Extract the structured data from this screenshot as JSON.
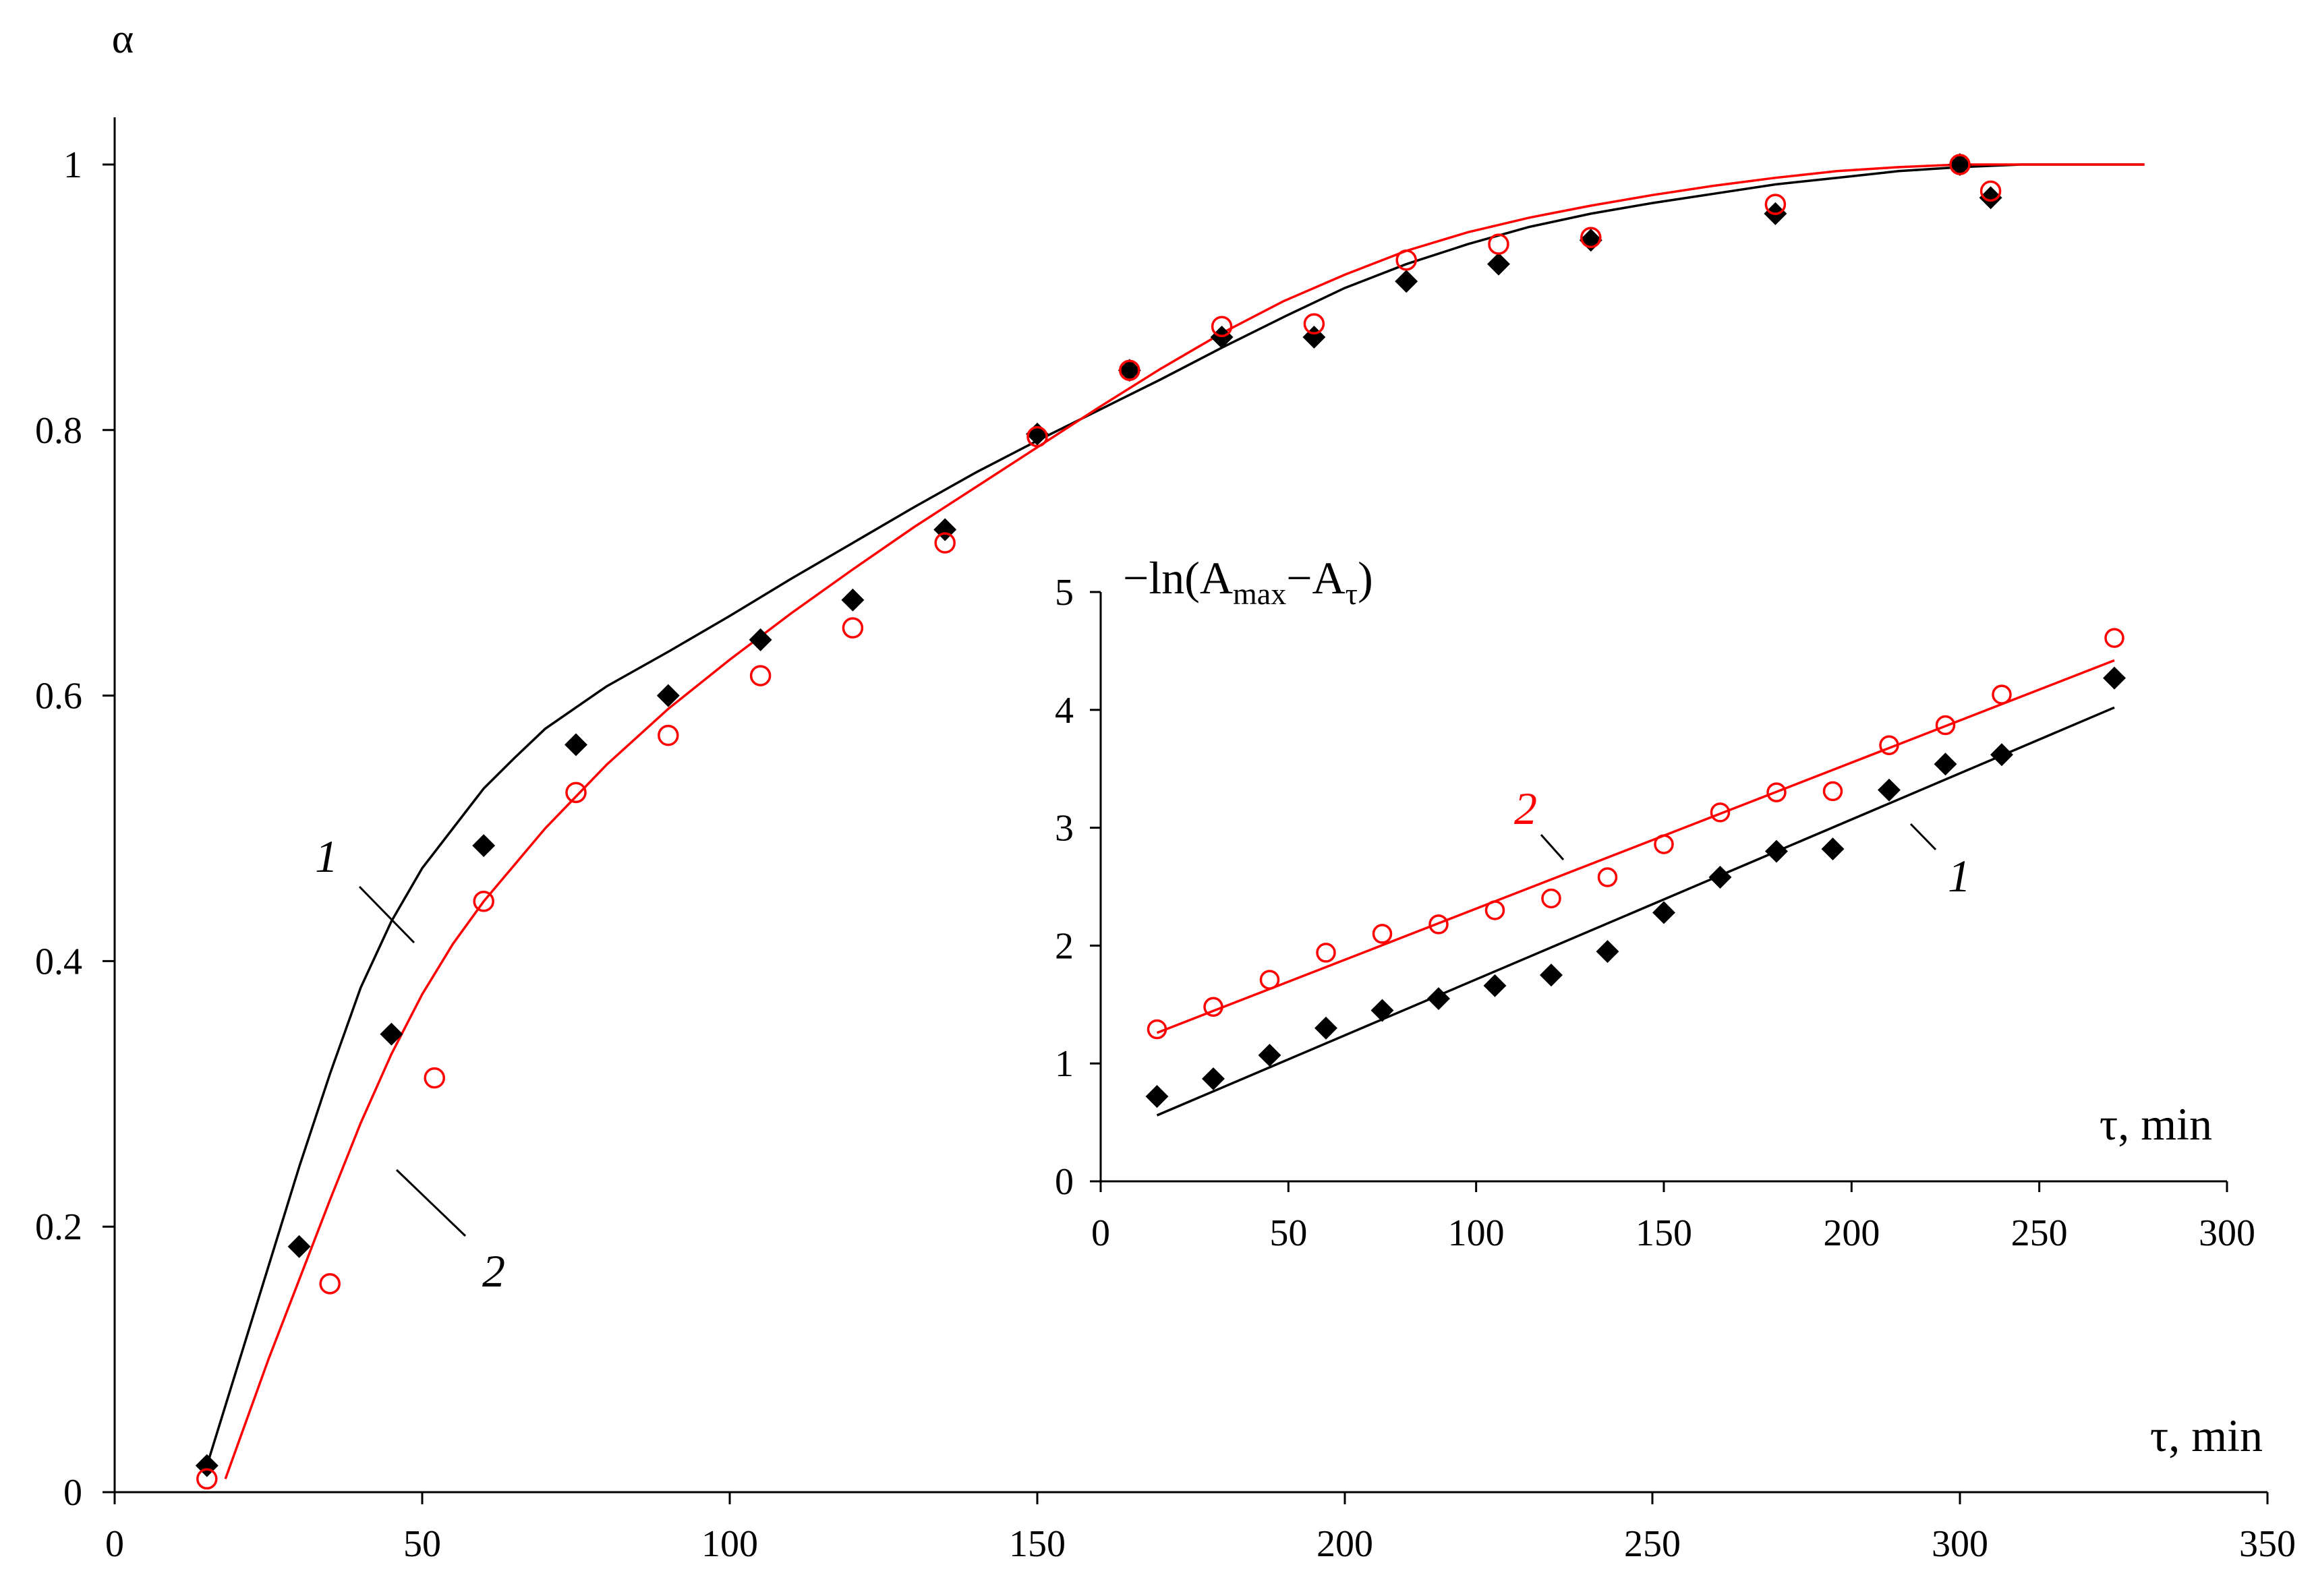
{
  "chart_data": [
    {
      "type": "scatter",
      "role": "main",
      "ylabel": "α",
      "xlabel": "τ, min",
      "xlim": [
        0,
        350
      ],
      "ylim": [
        0,
        1
      ],
      "xticks": [
        0,
        50,
        100,
        150,
        200,
        250,
        300,
        350
      ],
      "yticks": [
        0,
        0.2,
        0.4,
        0.6,
        0.8,
        1
      ],
      "ytick_labels": [
        "0",
        "0.2",
        "0.4",
        "0.6",
        "0.8",
        "1"
      ],
      "grid": false,
      "series": [
        {
          "name": "1",
          "color": "#000000",
          "marker": "filled-diamond",
          "points": [
            [
              15,
              0.02
            ],
            [
              30,
              0.185
            ],
            [
              45,
              0.345
            ],
            [
              60,
              0.487
            ],
            [
              75,
              0.563
            ],
            [
              90,
              0.6
            ],
            [
              105,
              0.642
            ],
            [
              120,
              0.672
            ],
            [
              135,
              0.725
            ],
            [
              150,
              0.797
            ],
            [
              165,
              0.845
            ],
            [
              180,
              0.87
            ],
            [
              195,
              0.87
            ],
            [
              210,
              0.912
            ],
            [
              225,
              0.925
            ],
            [
              240,
              0.943
            ],
            [
              270,
              0.963
            ],
            [
              300,
              1.0
            ],
            [
              305,
              0.975
            ]
          ],
          "fit_curve": [
            [
              15,
              0.02
            ],
            [
              20,
              0.095
            ],
            [
              25,
              0.17
            ],
            [
              30,
              0.245
            ],
            [
              35,
              0.315
            ],
            [
              40,
              0.38
            ],
            [
              45,
              0.43
            ],
            [
              50,
              0.47
            ],
            [
              55,
              0.5
            ],
            [
              60,
              0.53
            ],
            [
              65,
              0.553
            ],
            [
              70,
              0.575
            ],
            [
              80,
              0.607
            ],
            [
              90,
              0.633
            ],
            [
              100,
              0.66
            ],
            [
              110,
              0.688
            ],
            [
              120,
              0.715
            ],
            [
              130,
              0.742
            ],
            [
              140,
              0.768
            ],
            [
              150,
              0.792
            ],
            [
              160,
              0.815
            ],
            [
              170,
              0.838
            ],
            [
              180,
              0.862
            ],
            [
              190,
              0.885
            ],
            [
              200,
              0.907
            ],
            [
              210,
              0.925
            ],
            [
              220,
              0.94
            ],
            [
              230,
              0.953
            ],
            [
              240,
              0.963
            ],
            [
              250,
              0.971
            ],
            [
              260,
              0.978
            ],
            [
              270,
              0.985
            ],
            [
              280,
              0.99
            ],
            [
              290,
              0.995
            ],
            [
              300,
              0.998
            ],
            [
              310,
              1.0
            ],
            [
              330,
              1.0
            ]
          ]
        },
        {
          "name": "2",
          "color": "#ff0000",
          "marker": "open-circle",
          "points": [
            [
              15,
              0.01
            ],
            [
              35,
              0.157
            ],
            [
              52,
              0.312
            ],
            [
              60,
              0.445
            ],
            [
              75,
              0.527
            ],
            [
              90,
              0.57
            ],
            [
              105,
              0.615
            ],
            [
              120,
              0.651
            ],
            [
              135,
              0.715
            ],
            [
              150,
              0.795
            ],
            [
              165,
              0.845
            ],
            [
              180,
              0.878
            ],
            [
              195,
              0.88
            ],
            [
              210,
              0.928
            ],
            [
              225,
              0.94
            ],
            [
              240,
              0.945
            ],
            [
              270,
              0.97
            ],
            [
              300,
              1.0
            ],
            [
              305,
              0.98
            ]
          ],
          "fit_curve": [
            [
              18,
              0.01
            ],
            [
              25,
              0.1
            ],
            [
              30,
              0.16
            ],
            [
              35,
              0.22
            ],
            [
              40,
              0.278
            ],
            [
              45,
              0.33
            ],
            [
              50,
              0.375
            ],
            [
              55,
              0.413
            ],
            [
              60,
              0.445
            ],
            [
              70,
              0.5
            ],
            [
              80,
              0.548
            ],
            [
              90,
              0.59
            ],
            [
              100,
              0.627
            ],
            [
              110,
              0.662
            ],
            [
              120,
              0.695
            ],
            [
              130,
              0.727
            ],
            [
              140,
              0.757
            ],
            [
              150,
              0.787
            ],
            [
              160,
              0.817
            ],
            [
              170,
              0.846
            ],
            [
              180,
              0.873
            ],
            [
              190,
              0.897
            ],
            [
              200,
              0.917
            ],
            [
              210,
              0.935
            ],
            [
              220,
              0.949
            ],
            [
              230,
              0.96
            ],
            [
              240,
              0.969
            ],
            [
              250,
              0.977
            ],
            [
              260,
              0.984
            ],
            [
              270,
              0.99
            ],
            [
              280,
              0.995
            ],
            [
              290,
              0.998
            ],
            [
              300,
              1.0
            ],
            [
              330,
              1.0
            ]
          ]
        }
      ],
      "curve_labels": [
        "1",
        "2"
      ]
    },
    {
      "type": "scatter",
      "role": "inset",
      "ylabel_parts": [
        "−ln(A",
        "max",
        "−A",
        "τ",
        ")"
      ],
      "xlabel": "τ, min",
      "xlim": [
        0,
        300
      ],
      "ylim": [
        0,
        5
      ],
      "xticks": [
        0,
        50,
        100,
        150,
        200,
        250,
        300
      ],
      "yticks": [
        0,
        1,
        2,
        3,
        4,
        5
      ],
      "grid": false,
      "series": [
        {
          "name": "1",
          "color": "#000000",
          "marker": "filled-diamond",
          "points": [
            [
              15,
              0.72
            ],
            [
              30,
              0.87
            ],
            [
              45,
              1.07
            ],
            [
              60,
              1.3
            ],
            [
              75,
              1.45
            ],
            [
              90,
              1.55
            ],
            [
              105,
              1.66
            ],
            [
              120,
              1.75
            ],
            [
              135,
              1.95
            ],
            [
              150,
              2.28
            ],
            [
              165,
              2.58
            ],
            [
              180,
              2.8
            ],
            [
              195,
              2.82
            ],
            [
              210,
              3.32
            ],
            [
              225,
              3.54
            ],
            [
              240,
              3.62
            ],
            [
              270,
              4.27
            ]
          ],
          "fit_line": [
            [
              15,
              0.56
            ],
            [
              270,
              4.02
            ]
          ]
        },
        {
          "name": "2",
          "color": "#ff0000",
          "marker": "open-circle",
          "points": [
            [
              15,
              1.29
            ],
            [
              30,
              1.48
            ],
            [
              45,
              1.71
            ],
            [
              60,
              1.94
            ],
            [
              75,
              2.1
            ],
            [
              90,
              2.18
            ],
            [
              105,
              2.3
            ],
            [
              120,
              2.4
            ],
            [
              135,
              2.58
            ],
            [
              150,
              2.86
            ],
            [
              165,
              3.13
            ],
            [
              180,
              3.3
            ],
            [
              195,
              3.31
            ],
            [
              210,
              3.7
            ],
            [
              225,
              3.87
            ],
            [
              240,
              4.13
            ],
            [
              270,
              4.61
            ]
          ],
          "fit_line": [
            [
              15,
              1.26
            ],
            [
              270,
              4.42
            ]
          ]
        }
      ],
      "curve_labels": [
        "2",
        "1"
      ]
    }
  ]
}
